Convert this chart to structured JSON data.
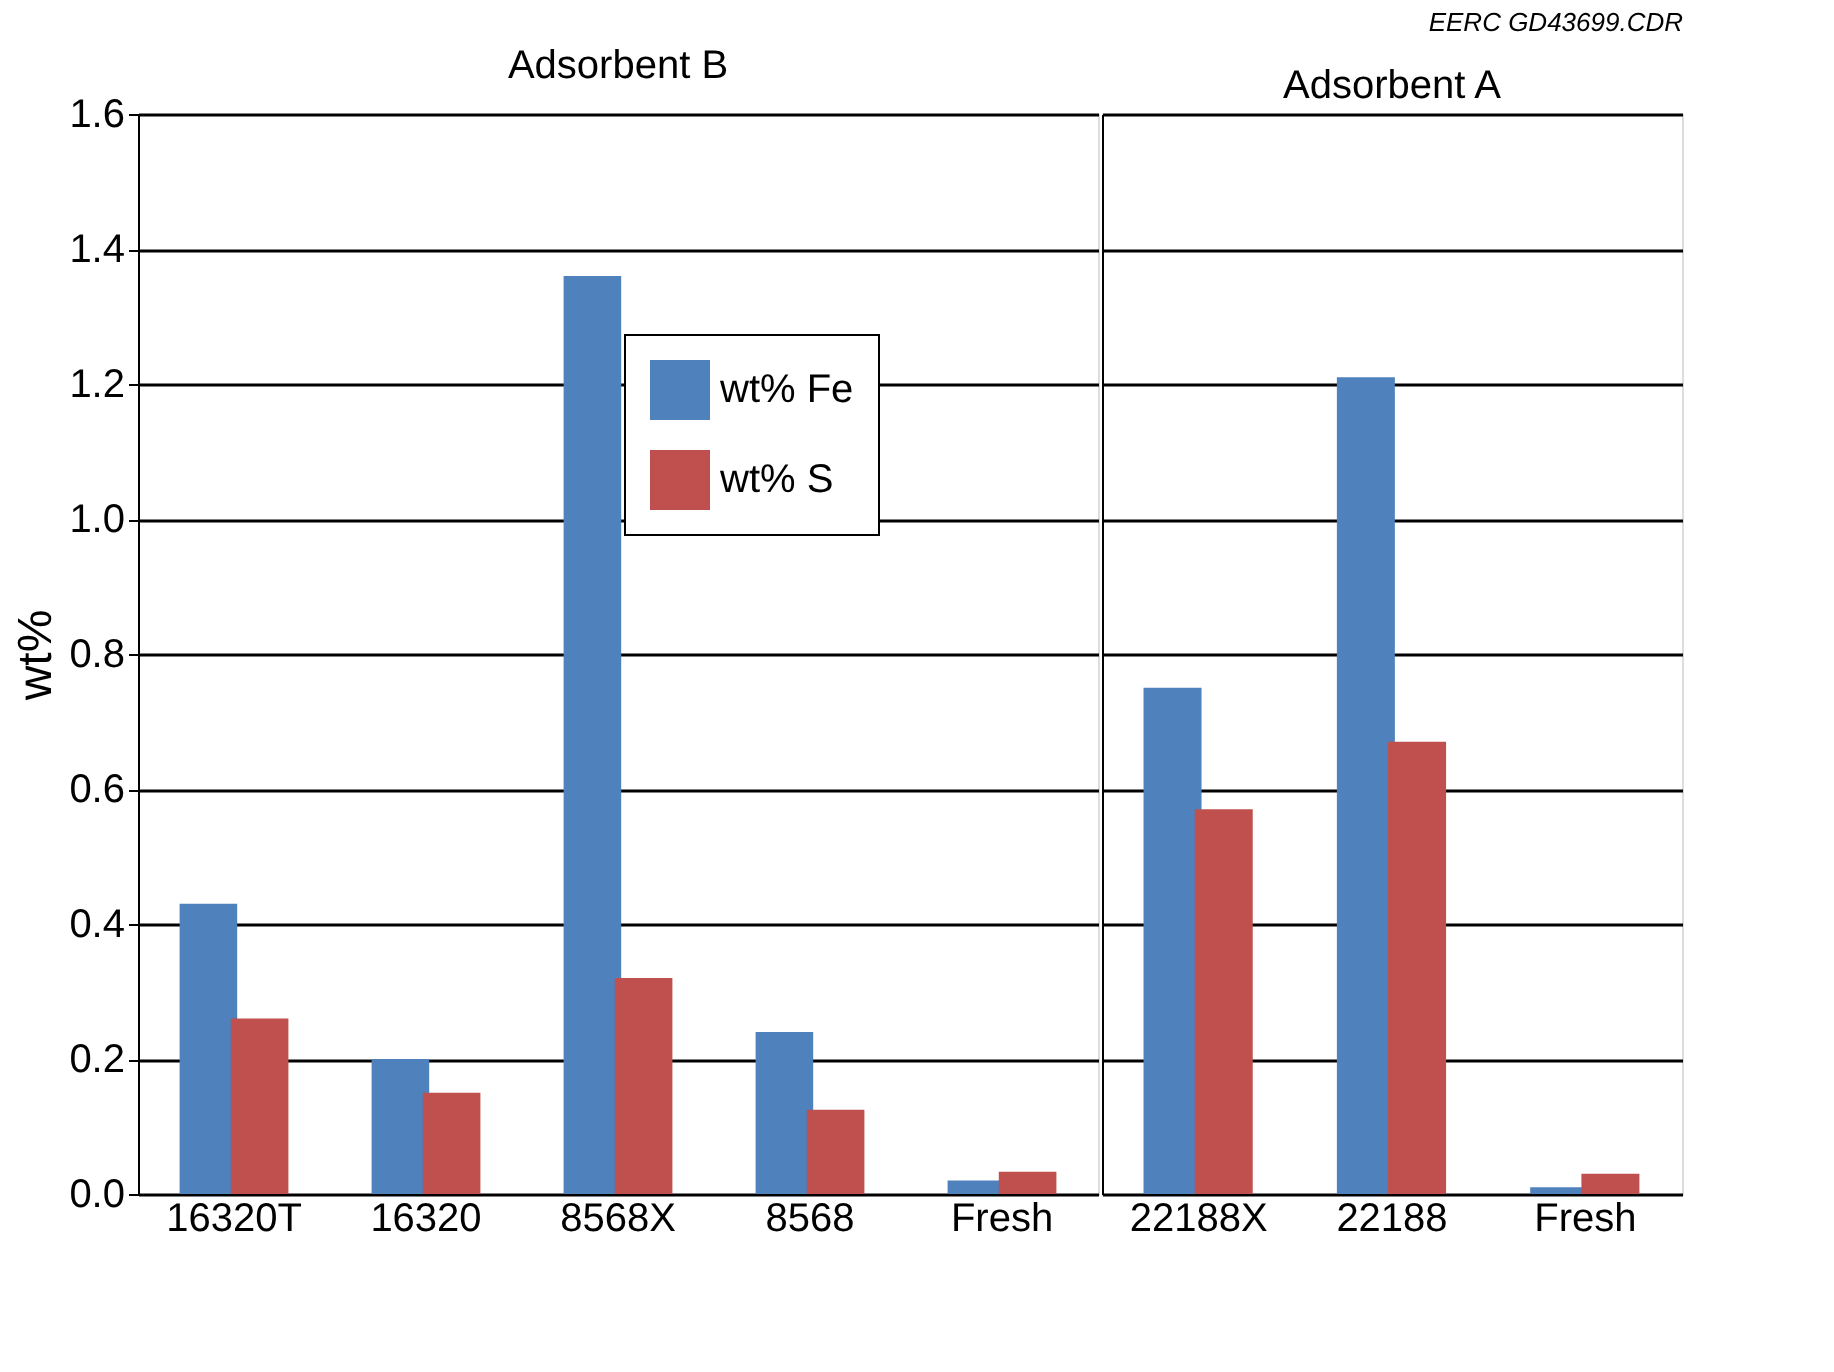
{
  "chart_data": [
    {
      "type": "bar",
      "title": "Adsorbent B",
      "ylabel": "wt%",
      "categories": [
        "16320T",
        "16320",
        "8568X",
        "8568",
        "Fresh"
      ],
      "series": [
        {
          "name": "wt% Fe",
          "color": "#4f81bd",
          "values": [
            0.43,
            0.2,
            1.36,
            0.24,
            0.02
          ]
        },
        {
          "name": "wt% S",
          "color": "#c0504d",
          "values": [
            0.26,
            0.15,
            0.32,
            0.125,
            0.033
          ]
        }
      ],
      "ylim": [
        0,
        1.6
      ],
      "yticks": [
        {
          "value": 0,
          "label": "0.0"
        },
        0.2,
        0.4,
        0.6,
        0.8,
        {
          "value": 1,
          "label": "1.0"
        },
        1.2,
        1.4,
        1.6
      ],
      "grid": "y",
      "legend": "top right"
    },
    {
      "type": "bar",
      "title": "Adsorbent A",
      "categories": [
        "22188X",
        "22188",
        "Fresh"
      ],
      "series": [
        {
          "color": "#4f81bd",
          "values": [
            0.75,
            1.21,
            0.01
          ]
        },
        {
          "color": "#c0504d",
          "values": [
            0.57,
            0.67,
            0.03
          ]
        }
      ],
      "ylim": [
        0,
        1.6
      ],
      "yticks": [
        0,
        0.2,
        0.4,
        0.6,
        0.8,
        1,
        1.2,
        1.4,
        1.6
      ],
      "grid": "y",
      "tick_labels": "x",
      "annotations": [
        "EERC GD43699.CDR"
      ]
    }
  ]
}
